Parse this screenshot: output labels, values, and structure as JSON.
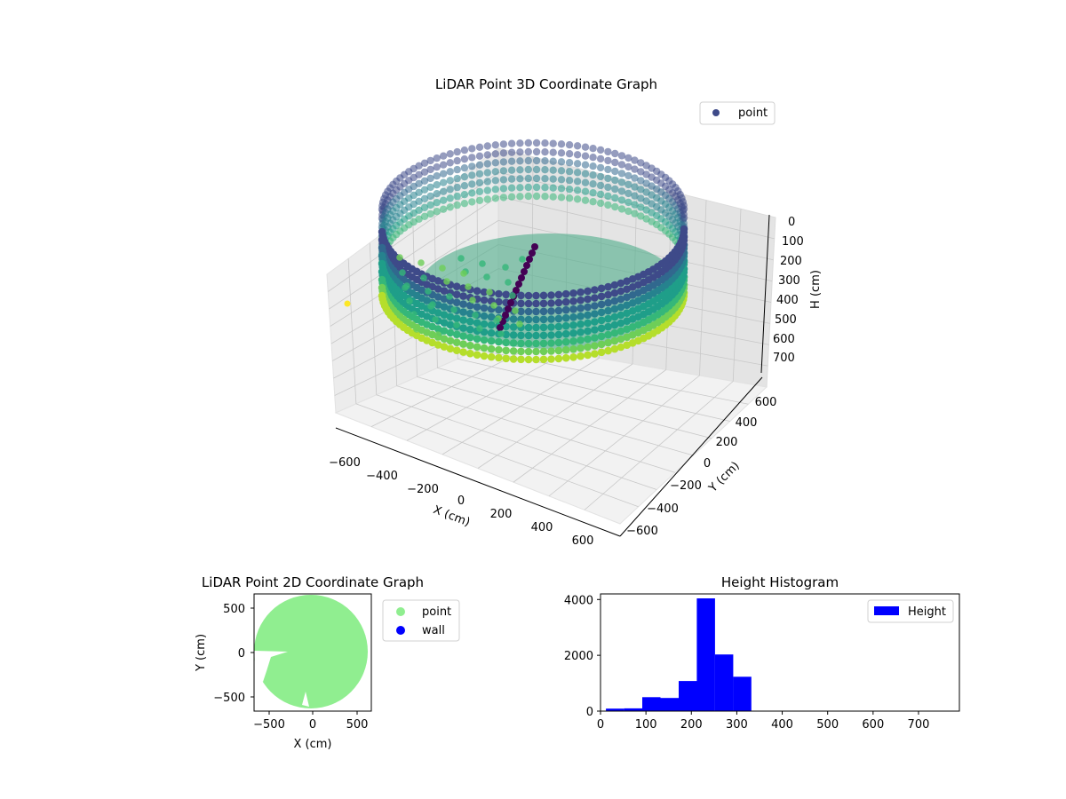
{
  "chart_data": [
    {
      "type": "scatter",
      "title": "LiDAR Point 3D Coordinate Graph",
      "xlabel": "X (cm)",
      "ylabel": "Y (cm)",
      "zlabel": "H (cm)",
      "xlim": [
        -650,
        650
      ],
      "ylim": [
        -650,
        650
      ],
      "zlim": [
        0,
        750
      ],
      "z_inverted": true,
      "x_ticks": [
        "−600",
        "−400",
        "−200",
        "0",
        "200",
        "400",
        "600"
      ],
      "y_ticks": [
        "−600",
        "−400",
        "−200",
        "0",
        "200",
        "400",
        "600"
      ],
      "z_ticks": [
        "0",
        "100",
        "200",
        "300",
        "400",
        "500",
        "600",
        "700"
      ],
      "legend": [
        "point"
      ],
      "legend_position": "top-right",
      "colormap": "viridis",
      "grid": true
    },
    {
      "type": "scatter",
      "title": "LiDAR Point 2D Coordinate Graph",
      "xlabel": "X (cm)",
      "ylabel": "Y (cm)",
      "xlim": [
        -650,
        650
      ],
      "ylim": [
        -650,
        650
      ],
      "x_ticks": [
        "−500",
        "0",
        "500"
      ],
      "y_ticks": [
        "500",
        "0",
        "−500"
      ],
      "series": [
        {
          "name": "point",
          "color": "#90ee90"
        },
        {
          "name": "wall",
          "color": "#0000ff"
        }
      ],
      "legend_position": "outside right"
    },
    {
      "type": "bar",
      "title": "Height Histogram",
      "xlim": [
        0,
        790
      ],
      "ylim": [
        0,
        4200
      ],
      "x_ticks": [
        "0",
        "100",
        "200",
        "300",
        "400",
        "500",
        "600",
        "700"
      ],
      "y_ticks": [
        "0",
        "2000",
        "4000"
      ],
      "bin_edges": [
        12,
        52,
        92,
        132,
        172,
        212,
        252,
        292,
        332,
        372,
        412,
        452,
        492,
        532,
        572,
        612,
        652,
        692,
        732,
        772
      ],
      "values": [
        90,
        100,
        500,
        470,
        1080,
        4040,
        2030,
        1230,
        0,
        0,
        0,
        0,
        0,
        0,
        0,
        0,
        0,
        0,
        0
      ],
      "series": [
        {
          "name": "Height",
          "color": "#0000ff"
        }
      ],
      "legend_position": "upper right"
    }
  ]
}
